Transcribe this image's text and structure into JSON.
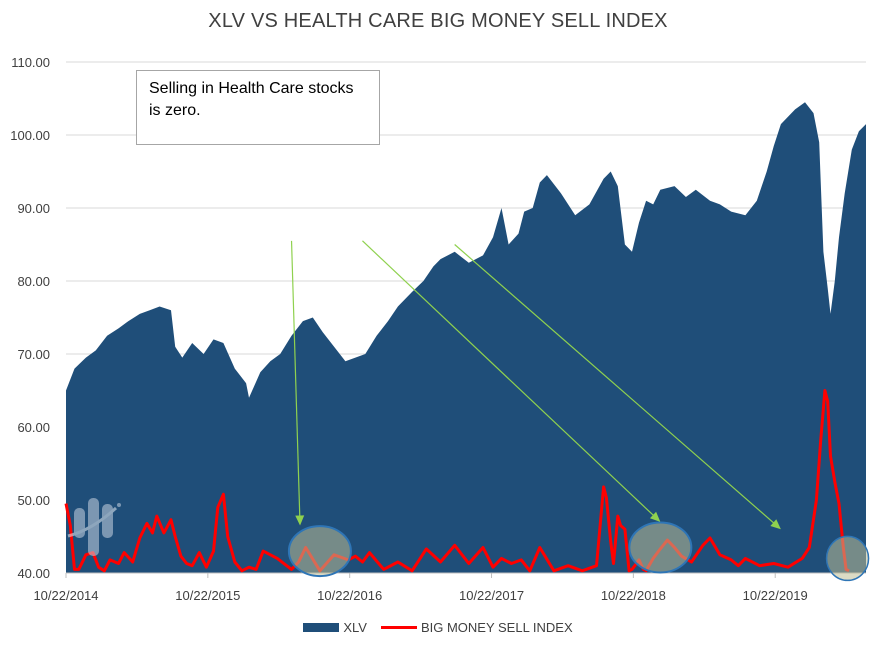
{
  "chart_data": {
    "type": "area",
    "title": "XLV VS HEALTH CARE BIG MONEY SELL INDEX",
    "ylim": [
      40,
      110
    ],
    "yticks": [
      "110.00",
      "100.00",
      "90.00",
      "80.00",
      "70.00",
      "60.00",
      "50.00",
      "40.00"
    ],
    "xtick_labels": [
      "10/22/2014",
      "10/22/2015",
      "10/22/2016",
      "10/22/2017",
      "10/22/2018",
      "10/22/2019"
    ],
    "xlim": [
      2014.81,
      2020.45
    ],
    "grid": "horizontal",
    "legend_position": "bottom",
    "annotation": "Selling in Health Care stocks is zero.",
    "series": [
      {
        "name": "XLV",
        "kind": "area",
        "color": "#1f4e79",
        "x": [
          2014.81,
          2014.87,
          2014.95,
          2015.02,
          2015.1,
          2015.18,
          2015.25,
          2015.33,
          2015.4,
          2015.47,
          2015.55,
          2015.58,
          2015.63,
          2015.7,
          2015.78,
          2015.85,
          2015.92,
          2016.0,
          2016.08,
          2016.1,
          2016.18,
          2016.25,
          2016.32,
          2016.4,
          2016.48,
          2016.55,
          2016.62,
          2016.7,
          2016.78,
          2016.85,
          2016.92,
          2017.0,
          2017.08,
          2017.15,
          2017.25,
          2017.33,
          2017.4,
          2017.45,
          2017.55,
          2017.65,
          2017.75,
          2017.82,
          2017.88,
          2017.93,
          2018.0,
          2018.04,
          2018.1,
          2018.15,
          2018.2,
          2018.3,
          2018.4,
          2018.5,
          2018.6,
          2018.65,
          2018.7,
          2018.75,
          2018.8,
          2018.85,
          2018.9,
          2018.95,
          2019.0,
          2019.1,
          2019.18,
          2019.25,
          2019.35,
          2019.42,
          2019.5,
          2019.6,
          2019.68,
          2019.75,
          2019.8,
          2019.85,
          2019.95,
          2020.02,
          2020.08,
          2020.12,
          2020.15,
          2020.18,
          2020.2,
          2020.23,
          2020.26,
          2020.3,
          2020.35,
          2020.4,
          2020.45
        ],
        "values": [
          65.0,
          68.0,
          69.5,
          70.5,
          72.5,
          73.5,
          74.5,
          75.5,
          76.0,
          76.5,
          76.0,
          71.0,
          69.5,
          71.5,
          70.0,
          72.0,
          71.5,
          68.0,
          66.0,
          64.0,
          67.5,
          69.0,
          70.0,
          72.5,
          74.5,
          75.0,
          73.0,
          71.0,
          69.0,
          69.5,
          70.0,
          72.5,
          74.5,
          76.5,
          78.5,
          80.0,
          82.0,
          83.0,
          84.0,
          82.5,
          83.5,
          86.0,
          90.0,
          85.0,
          86.5,
          89.5,
          90.0,
          93.5,
          94.5,
          92.0,
          89.0,
          90.5,
          94.0,
          95.0,
          93.0,
          85.0,
          84.0,
          88.0,
          91.0,
          90.5,
          92.5,
          93.0,
          91.5,
          92.5,
          91.0,
          90.5,
          89.5,
          89.0,
          91.0,
          95.0,
          98.5,
          101.5,
          103.5,
          104.5,
          103.0,
          99.0,
          84.0,
          79.0,
          75.5,
          80.0,
          86.0,
          92.0,
          98.0,
          100.5,
          101.5
        ]
      },
      {
        "name": "BIG MONEY SELL INDEX",
        "kind": "line",
        "color": "#ff0000",
        "x": [
          2014.81,
          2014.84,
          2014.87,
          2014.9,
          2014.95,
          2015.0,
          2015.04,
          2015.08,
          2015.12,
          2015.18,
          2015.22,
          2015.28,
          2015.33,
          2015.38,
          2015.42,
          2015.45,
          2015.5,
          2015.55,
          2015.58,
          2015.62,
          2015.66,
          2015.7,
          2015.75,
          2015.8,
          2015.85,
          2015.88,
          2015.92,
          2015.95,
          2016.0,
          2016.05,
          2016.1,
          2016.15,
          2016.2,
          2016.3,
          2016.4,
          2016.45,
          2016.5,
          2016.6,
          2016.7,
          2016.8,
          2016.85,
          2016.9,
          2016.95,
          2017.05,
          2017.15,
          2017.25,
          2017.35,
          2017.45,
          2017.55,
          2017.65,
          2017.75,
          2017.82,
          2017.88,
          2017.95,
          2018.02,
          2018.08,
          2018.15,
          2018.25,
          2018.35,
          2018.45,
          2018.55,
          2018.6,
          2018.62,
          2018.65,
          2018.67,
          2018.7,
          2018.72,
          2018.75,
          2018.78,
          2018.8,
          2018.82,
          2018.85,
          2018.88,
          2018.9,
          2018.95,
          2019.0,
          2019.05,
          2019.1,
          2019.15,
          2019.22,
          2019.3,
          2019.35,
          2019.42,
          2019.5,
          2019.55,
          2019.6,
          2019.7,
          2019.8,
          2019.9,
          2020.0,
          2020.05,
          2020.1,
          2020.13,
          2020.16,
          2020.18,
          2020.2,
          2020.23,
          2020.26,
          2020.29,
          2020.31,
          2020.33
        ],
        "values": [
          49.5,
          46.5,
          40.5,
          40.5,
          42.5,
          42.8,
          40.8,
          40.3,
          41.8,
          41.3,
          42.8,
          41.5,
          44.8,
          46.8,
          45.5,
          47.8,
          45.5,
          47.3,
          45.0,
          42.3,
          41.3,
          41.0,
          42.8,
          40.8,
          43.0,
          49.0,
          50.8,
          45.0,
          41.5,
          40.3,
          40.8,
          40.5,
          43.0,
          42.0,
          40.5,
          41.5,
          43.5,
          40.3,
          42.5,
          41.8,
          42.3,
          41.5,
          42.8,
          40.5,
          41.5,
          40.3,
          43.3,
          41.5,
          43.8,
          41.3,
          43.5,
          40.8,
          42.0,
          41.3,
          41.8,
          40.3,
          43.5,
          40.3,
          41.0,
          40.3,
          41.0,
          51.8,
          50.3,
          44.3,
          41.3,
          47.8,
          46.5,
          46.0,
          40.3,
          40.5,
          41.0,
          41.8,
          40.5,
          40.3,
          42.0,
          43.3,
          44.5,
          43.5,
          42.3,
          41.5,
          43.8,
          44.8,
          42.5,
          41.8,
          41.0,
          42.0,
          41.0,
          41.3,
          40.8,
          42.0,
          43.5,
          50.0,
          58.0,
          65.0,
          63.5,
          56.0,
          52.5,
          49.5,
          43.5,
          40.5,
          40.3
        ]
      }
    ],
    "arrows": [
      {
        "from": [
          2016.4,
          85.5
        ],
        "to": [
          2016.46,
          46.5
        ]
      },
      {
        "from": [
          2016.9,
          85.5
        ],
        "to": [
          2019.0,
          47.0
        ]
      },
      {
        "from": [
          2017.55,
          85.0
        ],
        "to": [
          2019.85,
          46.0
        ]
      }
    ],
    "highlights": [
      {
        "x": 2016.6,
        "y": 43.0
      },
      {
        "x": 2019.0,
        "y": 43.5
      },
      {
        "x": 2020.32,
        "y": 42.0
      }
    ]
  },
  "legend": {
    "xlv_label": "XLV",
    "sell_label": "BIG MONEY SELL INDEX"
  },
  "annotation": {
    "text": "Selling in Health Care stocks is zero."
  }
}
